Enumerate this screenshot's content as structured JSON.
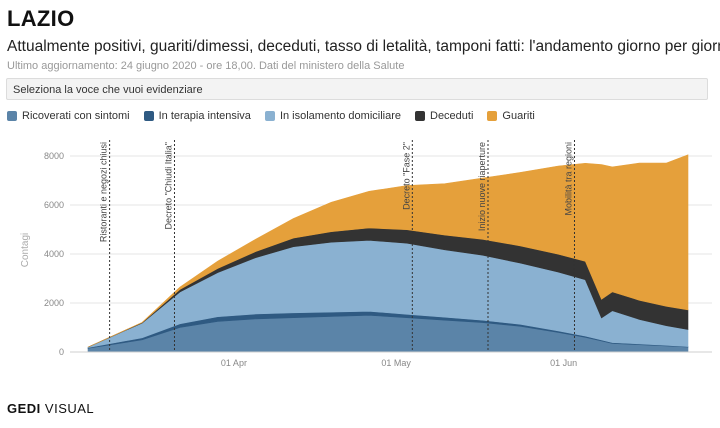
{
  "header": {
    "title": "LAZIO",
    "subtitle": "Attualmente positivi, guariti/dimessi, deceduti, tasso di letalità, tamponi fatti: l'andamento giorno per giorno",
    "updated": "Ultimo aggiornamento: 24 giugno 2020 - ore 18,00. Dati del ministero della Salute"
  },
  "selector": {
    "label": "Seleziona la voce che vuoi evidenziare"
  },
  "footer": {
    "brand": "GEDI",
    "suffix": "VISUAL"
  },
  "chart_data": {
    "type": "area",
    "stacked": true,
    "ylabel": "Contagi",
    "ylim": [
      0,
      8000
    ],
    "yticks": [
      0,
      2000,
      4000,
      6000,
      8000
    ],
    "xticks": [
      {
        "label": "01 Apr",
        "date": "2020-04-01"
      },
      {
        "label": "01 May",
        "date": "2020-05-01"
      },
      {
        "label": "01 Jun",
        "date": "2020-06-01"
      }
    ],
    "xrange": [
      "2020-03-05",
      "2020-06-24"
    ],
    "legend_position": "top-left",
    "grid": true,
    "x": [
      "2020-03-05",
      "2020-03-15",
      "2020-03-22",
      "2020-03-29",
      "2020-04-05",
      "2020-04-12",
      "2020-04-19",
      "2020-04-26",
      "2020-05-03",
      "2020-05-10",
      "2020-05-17",
      "2020-05-24",
      "2020-05-31",
      "2020-06-05",
      "2020-06-08",
      "2020-06-10",
      "2020-06-15",
      "2020-06-20",
      "2020-06-24"
    ],
    "series": [
      {
        "name": "Ricoverati con sintomi",
        "color": "#5b84a8",
        "values": [
          150,
          500,
          1000,
          1250,
          1350,
          1400,
          1450,
          1500,
          1400,
          1300,
          1200,
          1050,
          800,
          600,
          450,
          350,
          300,
          250,
          200
        ]
      },
      {
        "name": "In terapia intensiva",
        "color": "#2f5a82",
        "values": [
          30,
          80,
          150,
          190,
          200,
          200,
          180,
          160,
          140,
          120,
          100,
          80,
          60,
          50,
          40,
          35,
          30,
          25,
          20
        ]
      },
      {
        "name": "In isolamento domiciliare",
        "color": "#8ab1d1",
        "values": [
          20,
          600,
          1300,
          1800,
          2300,
          2700,
          2850,
          2900,
          2900,
          2750,
          2650,
          2500,
          2400,
          2300,
          900,
          1300,
          1000,
          800,
          700
        ]
      },
      {
        "name": "Deceduti",
        "color": "#333333",
        "values": [
          0,
          20,
          100,
          170,
          250,
          350,
          430,
          500,
          550,
          600,
          650,
          700,
          730,
          750,
          760,
          770,
          780,
          790,
          800
        ]
      },
      {
        "name": "Guariti",
        "color": "#e5a03b",
        "values": [
          0,
          10,
          100,
          300,
          500,
          800,
          1200,
          1500,
          1800,
          2100,
          2500,
          3000,
          3600,
          4000,
          5500,
          5100,
          5600,
          5850,
          6330
        ]
      }
    ],
    "annotations": [
      {
        "date": "2020-03-09",
        "label": "Ristoranti e negozi chiusi"
      },
      {
        "date": "2020-03-21",
        "label": "Decreto \"Chiudi Italia\""
      },
      {
        "date": "2020-05-04",
        "label": "Decreto \"Fase 2\""
      },
      {
        "date": "2020-05-18",
        "label": "Inizio nuove riaperture"
      },
      {
        "date": "2020-06-03",
        "label": "Mobilità tra regioni"
      }
    ]
  }
}
